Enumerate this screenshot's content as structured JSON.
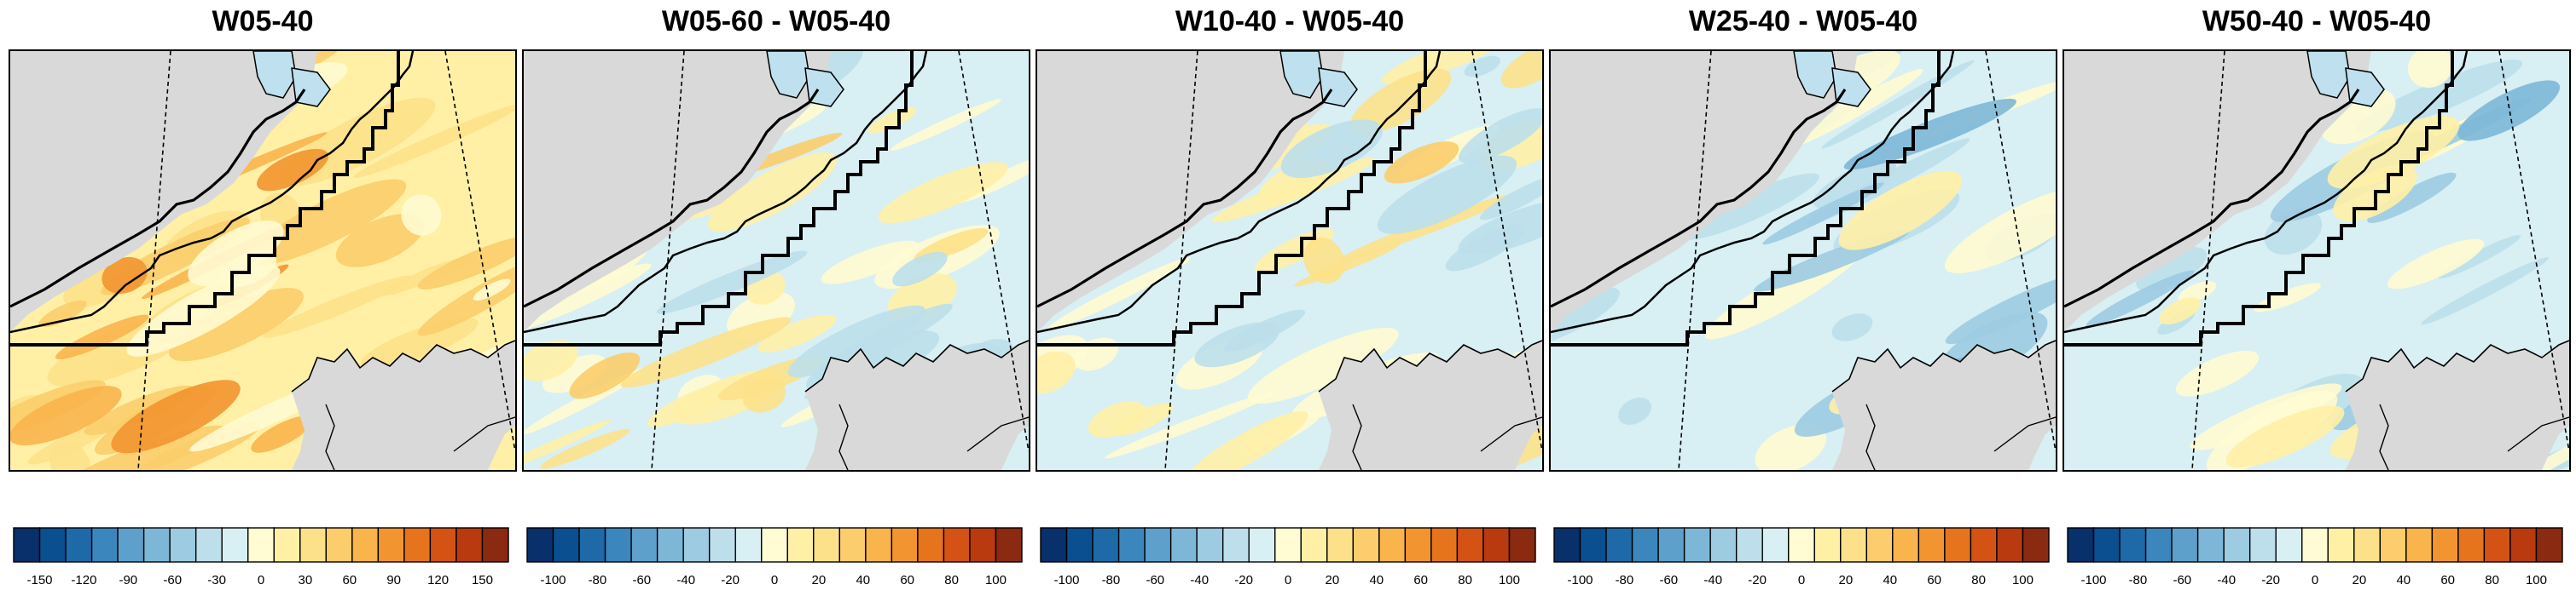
{
  "colors": {
    "land": "#d9d9d9",
    "palette": [
      "#08306b",
      "#0a4f8f",
      "#1e6aa8",
      "#3b86bd",
      "#5da0cc",
      "#7db7d8",
      "#9ccbe2",
      "#bcdfeb",
      "#d8eff4",
      "#fffbd2",
      "#fff0a6",
      "#fde18a",
      "#fbcd6c",
      "#f9b44c",
      "#f29530",
      "#e6741c",
      "#d45314",
      "#b83a0e",
      "#8a2a10"
    ]
  },
  "panels": [
    {
      "title": "W05-40",
      "field": "warm",
      "colorbar": {
        "ticks": [
          "-150",
          "-120",
          "-90",
          "-60",
          "-30",
          "0",
          "30",
          "60",
          "90",
          "120",
          "150"
        ]
      }
    },
    {
      "title": "W05-60 - W05-40",
      "field": "mixed",
      "colorbar": {
        "ticks": [
          "-100",
          "-80",
          "-60",
          "-40",
          "-20",
          "0",
          "20",
          "40",
          "60",
          "80",
          "100"
        ]
      }
    },
    {
      "title": "W10-40 - W05-40",
      "field": "mixed",
      "colorbar": {
        "ticks": [
          "-100",
          "-80",
          "-60",
          "-40",
          "-20",
          "0",
          "20",
          "40",
          "60",
          "80",
          "100"
        ]
      }
    },
    {
      "title": "W25-40 - W05-40",
      "field": "cool",
      "colorbar": {
        "ticks": [
          "-100",
          "-80",
          "-60",
          "-40",
          "-20",
          "0",
          "20",
          "40",
          "60",
          "80",
          "100"
        ]
      }
    },
    {
      "title": "W50-40 - W05-40",
      "field": "cool",
      "colorbar": {
        "ticks": [
          "-100",
          "-80",
          "-60",
          "-40",
          "-20",
          "0",
          "20",
          "40",
          "60",
          "80",
          "100"
        ]
      }
    }
  ]
}
